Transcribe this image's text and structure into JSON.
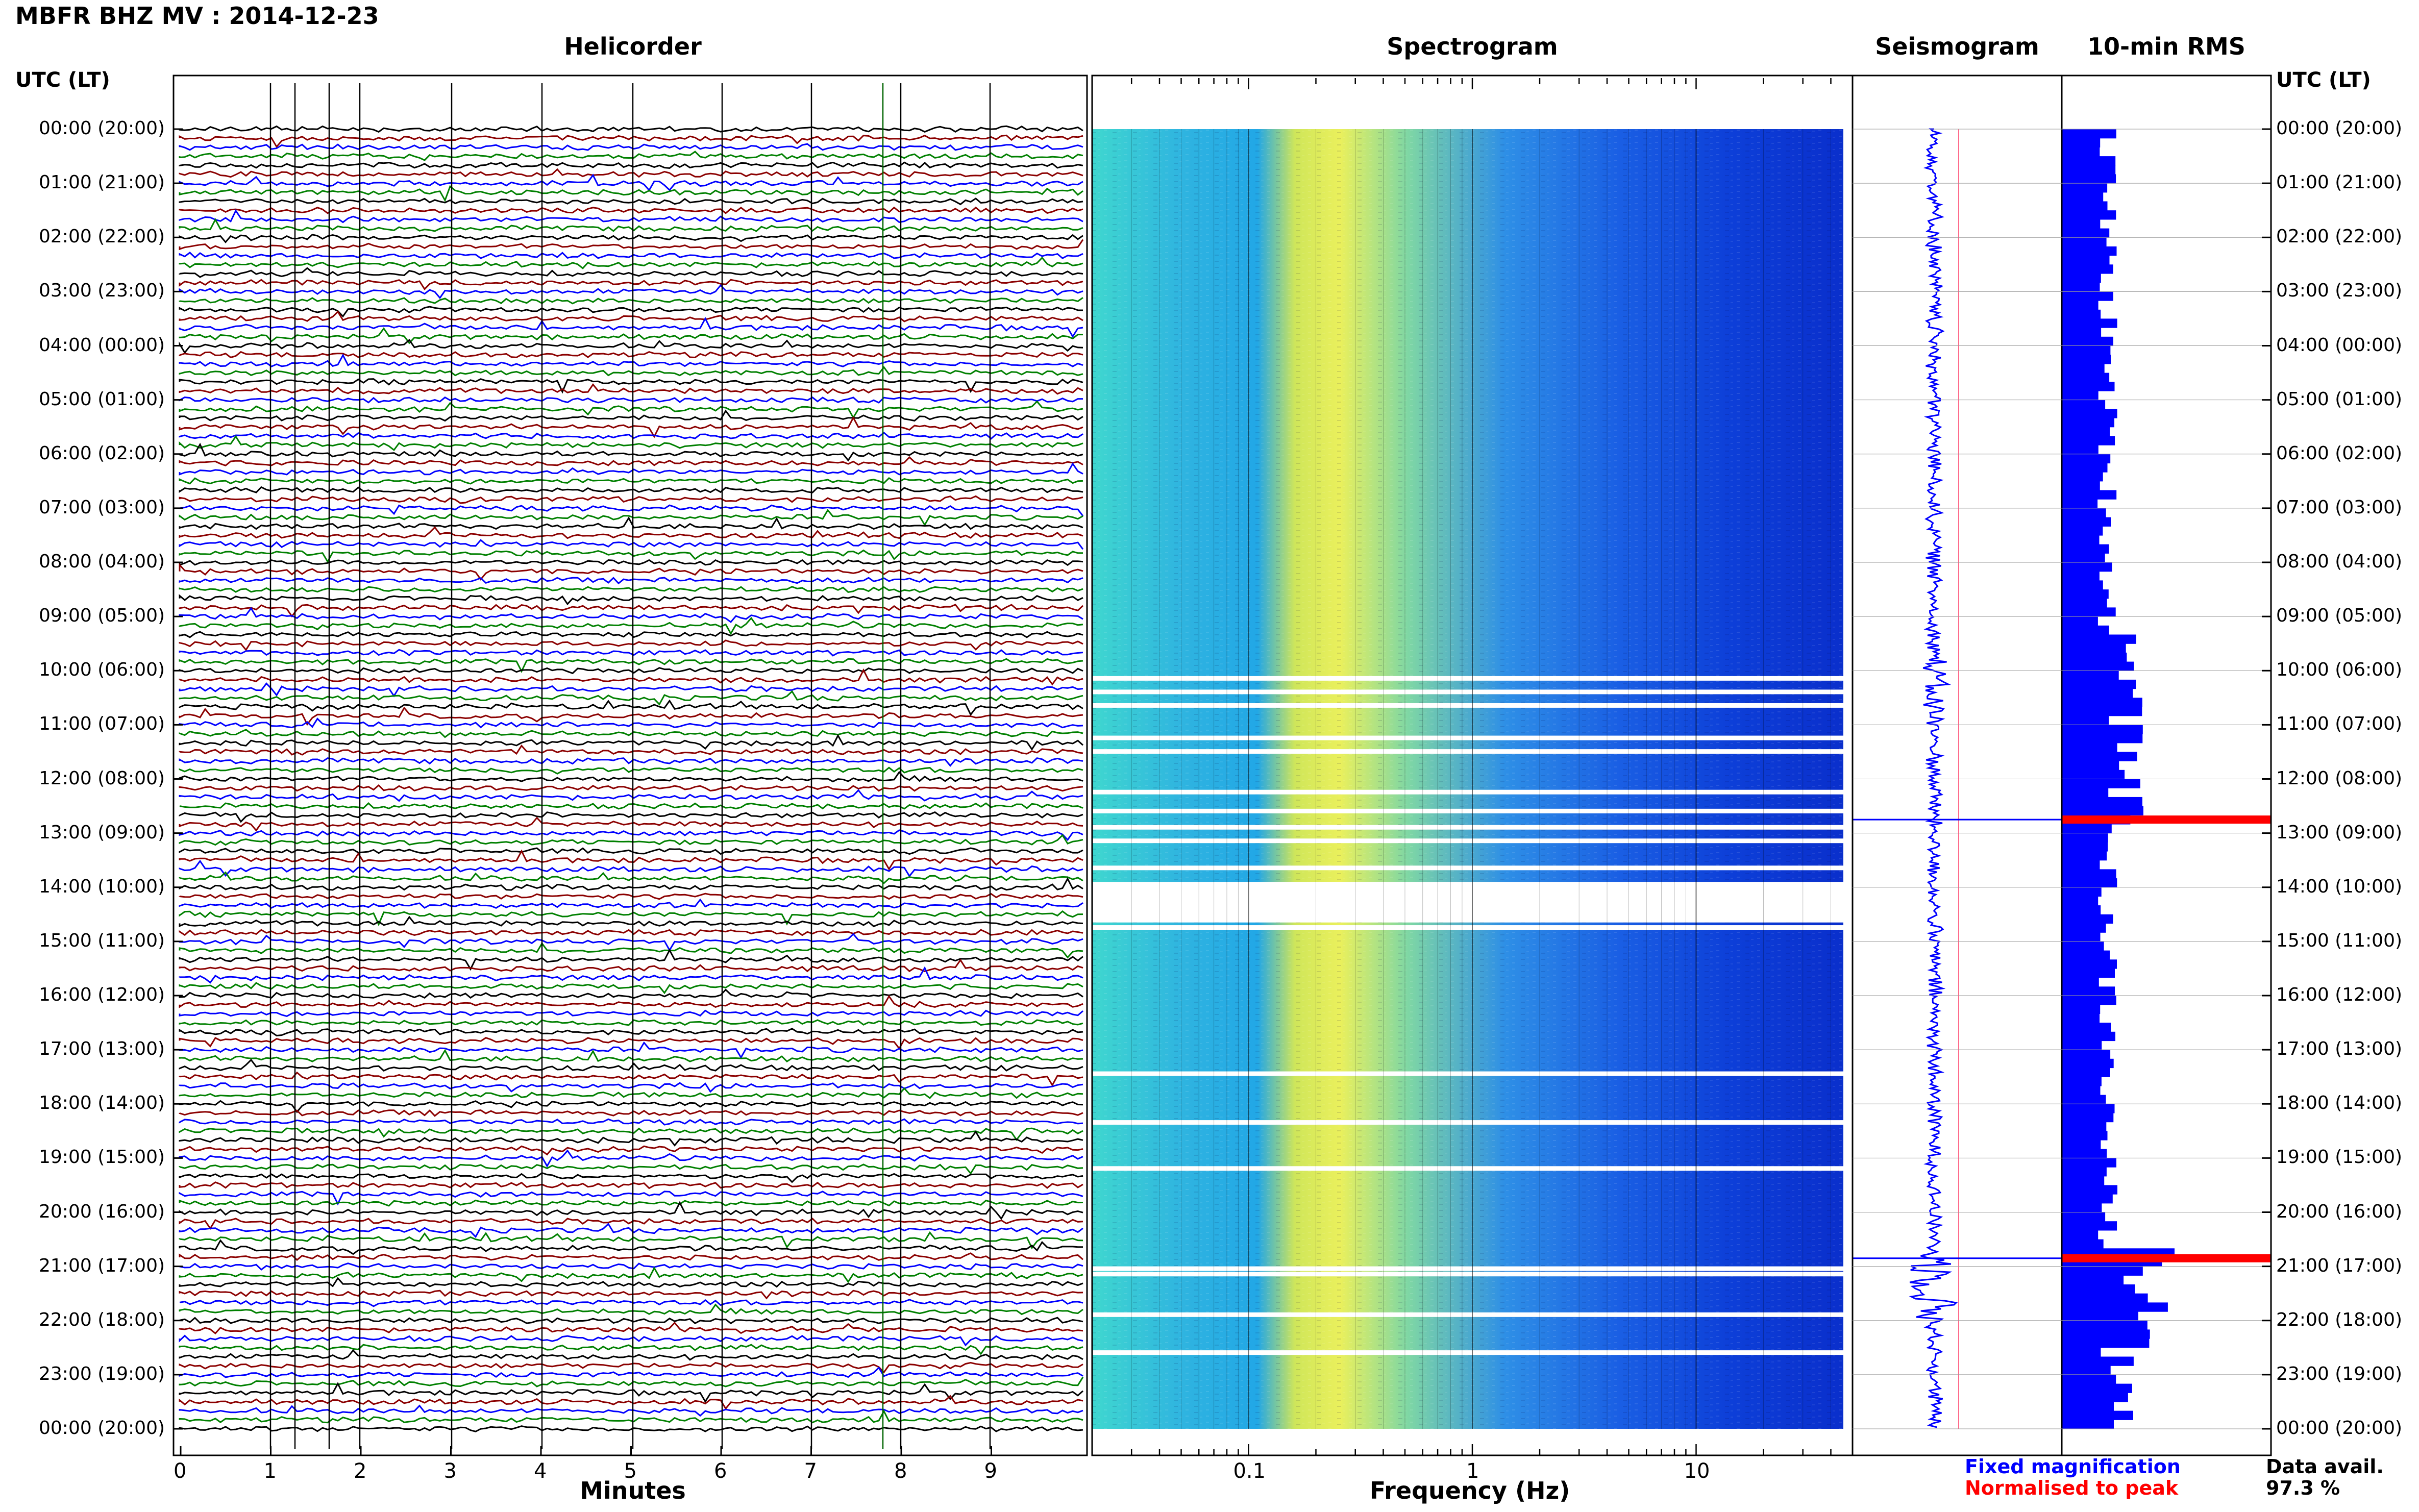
{
  "header": {
    "title": "MBFR BHZ MV : 2014-12-23"
  },
  "panels": {
    "helicorder": "Helicorder",
    "spectrogram": "Spectrogram",
    "seismogram": "Seismogram",
    "rms": "10-min RMS"
  },
  "axes": {
    "left_header": "UTC (LT)",
    "right_header": "UTC (LT)",
    "time_labels": [
      "00:00 (20:00)",
      "01:00 (21:00)",
      "02:00 (22:00)",
      "03:00 (23:00)",
      "04:00 (00:00)",
      "05:00 (01:00)",
      "06:00 (02:00)",
      "07:00 (03:00)",
      "08:00 (04:00)",
      "09:00 (05:00)",
      "10:00 (06:00)",
      "11:00 (07:00)",
      "12:00 (08:00)",
      "13:00 (09:00)",
      "14:00 (10:00)",
      "15:00 (11:00)",
      "16:00 (12:00)",
      "17:00 (13:00)",
      "18:00 (14:00)",
      "19:00 (15:00)",
      "20:00 (16:00)",
      "21:00 (17:00)",
      "22:00 (18:00)",
      "23:00 (19:00)",
      "00:00 (20:00)"
    ],
    "minutes_title": "Minutes",
    "minutes_ticks": [
      "0",
      "1",
      "2",
      "3",
      "4",
      "5",
      "6",
      "7",
      "8",
      "9"
    ],
    "frequency_title": "Frequency (Hz)",
    "frequency_ticks": [
      "0.1",
      "1",
      "10"
    ]
  },
  "legend": {
    "fixed": "Fixed magnification",
    "normalised": "Normalised to peak",
    "fixed_color": "#0000ff",
    "normalised_color": "#ff0000"
  },
  "availability": {
    "label": "Data avail.",
    "value": "97.3 %"
  },
  "colors": {
    "black": "#000000",
    "red": "#8b0000",
    "blue": "#0000ff",
    "green": "#008000",
    "rms_bar": "#0000ff",
    "rms_peak": "#ff0000"
  },
  "chart_data": {
    "type": "heatmap",
    "hours": 24,
    "helicorder": {
      "lines_per_hour": 6,
      "minutes_range": [
        0,
        10
      ],
      "trace_colors": [
        "black",
        "red",
        "blue",
        "green"
      ]
    },
    "spectrogram": {
      "frequency_range_hz": [
        0.02,
        50
      ],
      "frequency_scale": "log",
      "gap_hours": [
        10.1,
        10.35,
        10.6,
        11.2,
        11.45,
        12.2,
        12.55,
        12.85,
        13.1,
        13.6,
        13.9,
        14.55,
        14.7,
        17.4,
        18.3,
        19.15,
        21.0,
        21.1,
        21.85,
        22.55
      ]
    },
    "rms": {
      "interval_minutes": 10,
      "peak_hours": [
        12.75,
        20.85
      ]
    }
  }
}
